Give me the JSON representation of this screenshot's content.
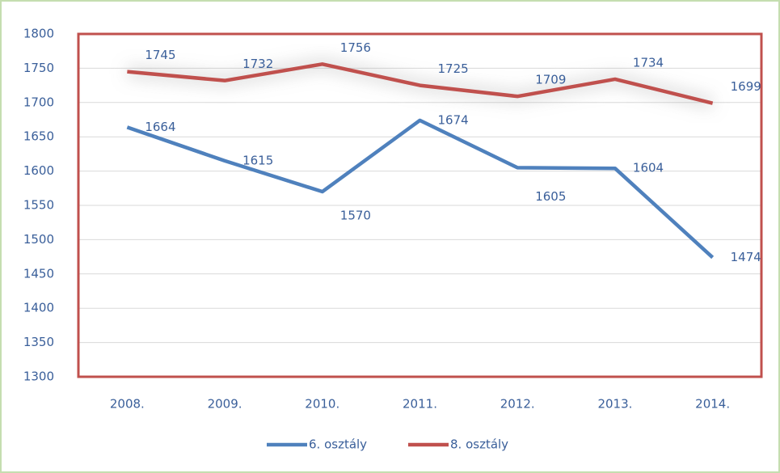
{
  "chart_data": {
    "type": "line",
    "categories": [
      "2008.",
      "2009.",
      "2010.",
      "2011.",
      "2012.",
      "2013.",
      "2014."
    ],
    "series": [
      {
        "name": "6. osztály",
        "color": "#4f81bd",
        "values": [
          1664,
          1615,
          1570,
          1674,
          1605,
          1604,
          1474
        ]
      },
      {
        "name": "8. osztály",
        "color": "#c0504d",
        "values": [
          1745,
          1732,
          1756,
          1725,
          1709,
          1734,
          1699
        ]
      }
    ],
    "ylim": [
      1300,
      1800
    ],
    "yticks": [
      1300,
      1350,
      1400,
      1450,
      1500,
      1550,
      1600,
      1650,
      1700,
      1750,
      1800
    ],
    "grid": true,
    "legend": "bottom",
    "plot_border_color": "#c0504d"
  }
}
